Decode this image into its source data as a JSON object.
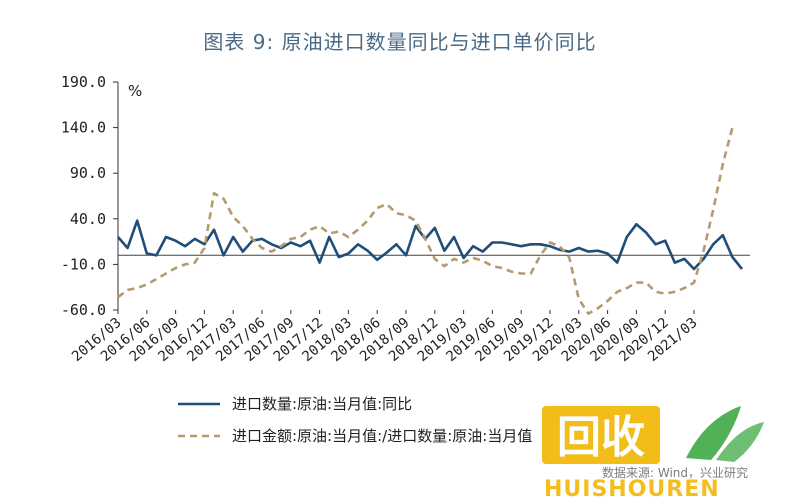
{
  "title": "图表 9: 原油进口数量同比与进口单价同比",
  "source": "数据来源: Wind，兴业研究",
  "watermark": {
    "brand_cn": "回收",
    "brand_en": "HUISHOUREN",
    "colors": {
      "badge": "#f2b705",
      "leaf": "#3da845",
      "text": "#f2b705"
    }
  },
  "chart_data": {
    "type": "line",
    "title": "图表 9: 原油进口数量同比与进口单价同比",
    "unit_label": "%",
    "ylim": [
      -60,
      190
    ],
    "yticks": [
      190,
      140,
      90,
      40,
      -10,
      -60
    ],
    "ytick_labels": [
      "190.0",
      "140.0",
      "90.0",
      "40.0",
      "-10.0",
      "-60.0"
    ],
    "xtick_labels": [
      "2016/03",
      "2016/06",
      "2016/09",
      "2016/12",
      "2017/03",
      "2017/06",
      "2017/09",
      "2017/12",
      "2018/03",
      "2018/06",
      "2018/09",
      "2018/12",
      "2019/03",
      "2019/06",
      "2019/09",
      "2019/12",
      "2020/03",
      "2020/06",
      "2020/09",
      "2020/12",
      "2021/03"
    ],
    "x_start": "2016/03",
    "x_end": "2021/04",
    "grid": false,
    "zero_line": true,
    "legend_position": "bottom",
    "series": [
      {
        "name": "进口数量:原油:当月值:同比",
        "color": "#1f4e79",
        "style": "solid",
        "values": [
          20,
          8,
          38,
          2,
          0,
          20,
          16,
          10,
          18,
          12,
          28,
          0,
          20,
          4,
          16,
          18,
          12,
          8,
          14,
          10,
          16,
          -8,
          20,
          -2,
          2,
          12,
          5,
          -5,
          3,
          12,
          0,
          32,
          18,
          30,
          5,
          20,
          -3,
          10,
          4,
          14,
          14,
          12,
          10,
          12,
          12,
          10,
          6,
          4,
          8,
          4,
          5,
          2,
          -8,
          20,
          34,
          25,
          12,
          16,
          -8,
          -4,
          -15,
          -4,
          12,
          22,
          -2,
          -15
        ]
      },
      {
        "name": "进口金额:原油:当月值:/进口数量:原油:当月值",
        "color": "#b59a6e",
        "style": "dashed",
        "values": [
          -46,
          -38,
          -36,
          -32,
          -26,
          -20,
          -14,
          -10,
          -8,
          8,
          68,
          62,
          42,
          32,
          18,
          8,
          4,
          10,
          18,
          20,
          28,
          32,
          24,
          26,
          20,
          28,
          38,
          52,
          56,
          46,
          44,
          38,
          18,
          -4,
          -12,
          -4,
          -8,
          -3,
          -6,
          -12,
          -14,
          -18,
          -20,
          -20,
          0,
          14,
          10,
          -2,
          -48,
          -64,
          -58,
          -50,
          -40,
          -36,
          -30,
          -30,
          -40,
          -42,
          -40,
          -36,
          -30,
          5,
          50,
          100,
          140
        ]
      }
    ]
  }
}
